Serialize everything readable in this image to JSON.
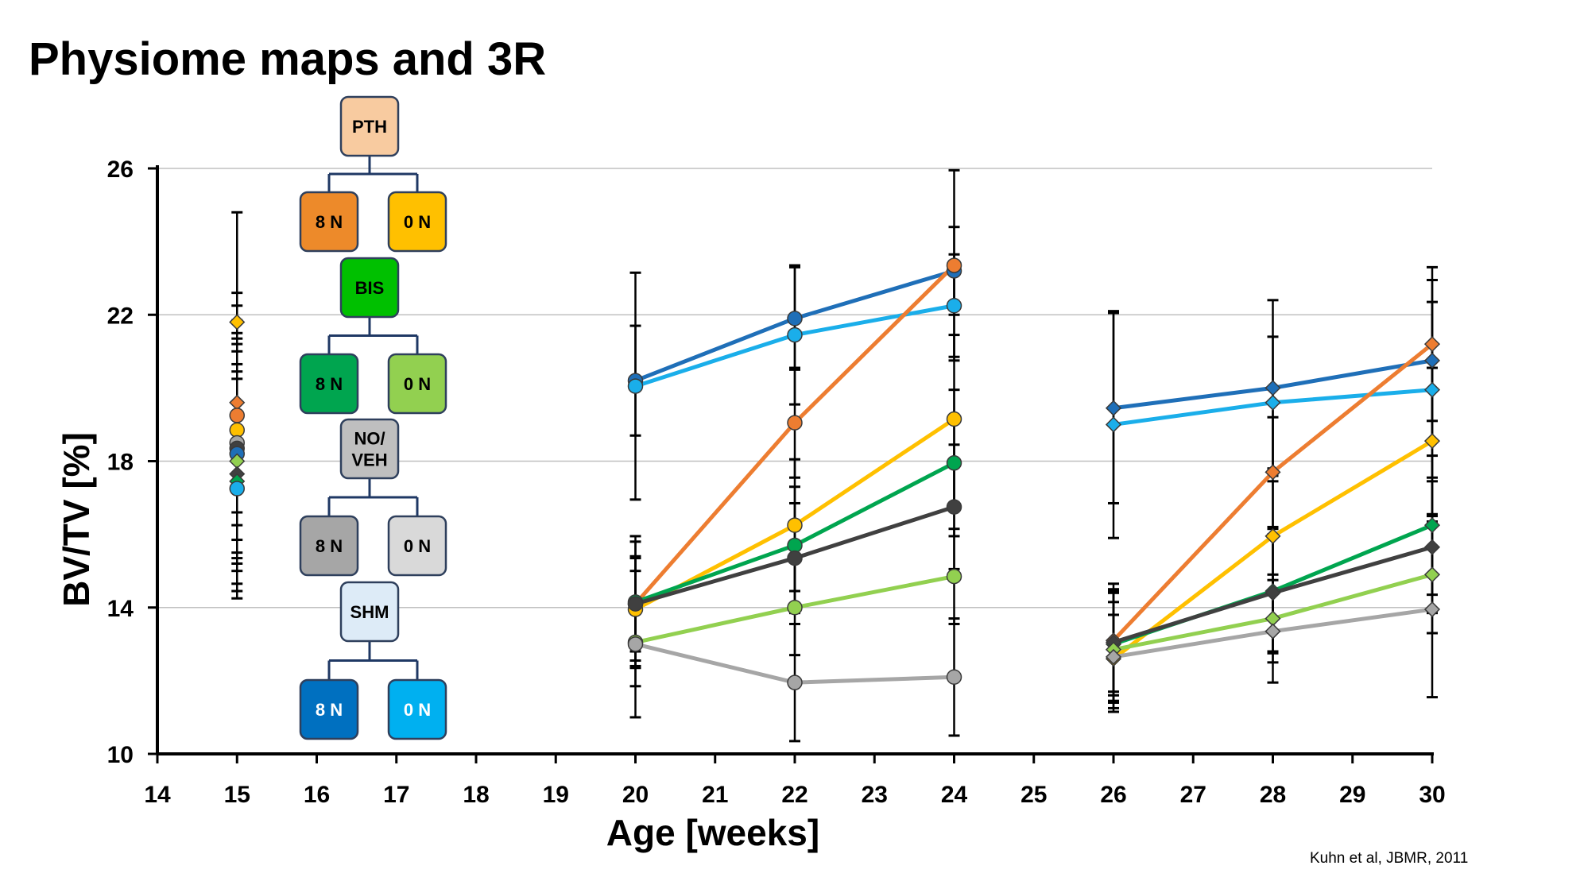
{
  "slide_title": "Physiome maps and 3R",
  "citation": "Kuhn et al, JBMR, 2011",
  "colors": {
    "axis": "#000000",
    "grid": "#c0c0c0",
    "error_bar": "#000000",
    "connector": "#1f3864"
  },
  "legend_tree": {
    "nodes": [
      {
        "id": "pth",
        "label": "PTH",
        "fill": "#f8cba0",
        "text_color": "#000000",
        "role": "group"
      },
      {
        "id": "pth-8n",
        "label": "8 N",
        "fill": "#ed8a2a",
        "text_color": "#000000",
        "role": "leaf"
      },
      {
        "id": "pth-0n",
        "label": "0 N",
        "fill": "#ffc000",
        "text_color": "#000000",
        "role": "leaf"
      },
      {
        "id": "bis",
        "label": "BIS",
        "fill": "#00c000",
        "text_color": "#000000",
        "role": "group"
      },
      {
        "id": "bis-8n",
        "label": "8 N",
        "fill": "#00a54f",
        "text_color": "#000000",
        "role": "leaf"
      },
      {
        "id": "bis-0n",
        "label": "0 N",
        "fill": "#92d050",
        "text_color": "#000000",
        "role": "leaf"
      },
      {
        "id": "noveh",
        "label": "NO/\nVEH",
        "fill": "#bfbfbf",
        "text_color": "#000000",
        "role": "group"
      },
      {
        "id": "noveh-8n",
        "label": "8 N",
        "fill": "#a6a6a6",
        "text_color": "#000000",
        "role": "leaf"
      },
      {
        "id": "noveh-0n",
        "label": "0 N",
        "fill": "#d9d9d9",
        "text_color": "#000000",
        "role": "leaf"
      },
      {
        "id": "shm",
        "label": "SHM",
        "fill": "#ddebf7",
        "text_color": "#000000",
        "role": "group"
      },
      {
        "id": "shm-8n",
        "label": "8 N",
        "fill": "#0070c0",
        "text_color": "#ffffff",
        "role": "leaf"
      },
      {
        "id": "shm-0n",
        "label": "0 N",
        "fill": "#00b0f0",
        "text_color": "#ffffff",
        "role": "leaf"
      }
    ]
  },
  "chart_data": {
    "type": "line",
    "title": "",
    "xlabel": "Age [weeks]",
    "ylabel": "BV/TV [%]",
    "xlim": [
      14,
      30
    ],
    "ylim": [
      10,
      26
    ],
    "x_ticks": [
      14,
      15,
      16,
      17,
      18,
      19,
      20,
      21,
      22,
      23,
      24,
      25,
      26,
      27,
      28,
      29,
      30
    ],
    "y_ticks": [
      10,
      14,
      18,
      22,
      26
    ],
    "grid": "horizontal",
    "series": [
      {
        "group": "SHM 8 N",
        "color": "#1f6fb8",
        "segments": [
          {
            "marker": "circle",
            "points": [
              [
                20,
                20.2
              ],
              [
                22,
                21.9
              ],
              [
                24,
                23.2
              ]
            ],
            "err": [
              1.5,
              1.4,
              1.2
            ]
          },
          {
            "marker": "diamond",
            "points": [
              [
                26,
                19.45
              ],
              [
                28,
                20.0
              ],
              [
                30,
                20.75
              ]
            ],
            "err": [
              2.6,
              2.4,
              2.2
            ]
          }
        ]
      },
      {
        "group": "SHM 0 N",
        "color": "#1aaeea",
        "segments": [
          {
            "marker": "circle",
            "points": [
              [
                20,
                20.05
              ],
              [
                22,
                21.45
              ],
              [
                24,
                22.25
              ]
            ],
            "err": [
              3.1,
              1.9,
              1.4
            ]
          },
          {
            "marker": "diamond",
            "points": [
              [
                26,
                19.0
              ],
              [
                28,
                19.6
              ],
              [
                30,
                19.95
              ]
            ],
            "err": [
              3.1,
              1.8,
              2.4
            ]
          }
        ]
      },
      {
        "group": "PTH 8 N",
        "color": "#ed7d31",
        "segments": [
          {
            "marker": "circle",
            "points": [
              [
                20,
                14.1
              ],
              [
                22,
                19.05
              ],
              [
                24,
                23.35
              ]
            ],
            "err": [
              1.3,
              1.5,
              2.6
            ]
          },
          {
            "marker": "diamond",
            "points": [
              [
                26,
                13.1
              ],
              [
                28,
                17.7
              ],
              [
                30,
                21.2
              ]
            ],
            "err": [
              1.4,
              1.5,
              2.1
            ]
          }
        ]
      },
      {
        "group": "PTH 0 N",
        "color": "#ffc000",
        "segments": [
          {
            "marker": "circle",
            "points": [
              [
                20,
                13.95
              ],
              [
                22,
                16.25
              ],
              [
                24,
                19.15
              ]
            ],
            "err": [
              1.4,
              1.8,
              2.3
            ]
          },
          {
            "marker": "diamond",
            "points": [
              [
                26,
                12.6
              ],
              [
                28,
                15.95
              ],
              [
                30,
                18.55
              ]
            ],
            "err": [
              1.2,
              1.5,
              2.0
            ]
          }
        ]
      },
      {
        "group": "BIS 8 N",
        "color": "#00a54f",
        "segments": [
          {
            "marker": "circle",
            "points": [
              [
                20,
                14.15
              ],
              [
                22,
                15.7
              ],
              [
                24,
                17.95
              ]
            ],
            "err": [
              1.8,
              1.6,
              2.0
            ]
          },
          {
            "marker": "diamond",
            "points": [
              [
                26,
                13.0
              ],
              [
                28,
                14.45
              ],
              [
                30,
                16.25
              ]
            ],
            "err": [
              1.4,
              1.7,
              1.9
            ]
          }
        ]
      },
      {
        "group": "NO/VEH 8 N",
        "color": "#404040",
        "segments": [
          {
            "marker": "circle",
            "points": [
              [
                20,
                14.1
              ],
              [
                22,
                15.35
              ],
              [
                24,
                16.75
              ]
            ],
            "err": [
              1.7,
              1.5,
              1.7
            ]
          },
          {
            "marker": "diamond",
            "points": [
              [
                26,
                13.05
              ],
              [
                28,
                14.4
              ],
              [
                30,
                15.65
              ]
            ],
            "err": [
              1.6,
              1.6,
              1.8
            ]
          }
        ]
      },
      {
        "group": "BIS 0 N",
        "color": "#92d050",
        "segments": [
          {
            "marker": "circle",
            "points": [
              [
                20,
                13.05
              ],
              [
                22,
                14.0
              ],
              [
                24,
                14.85
              ]
            ],
            "err": [
              1.2,
              1.3,
              1.3
            ]
          },
          {
            "marker": "diamond",
            "points": [
              [
                26,
                12.85
              ],
              [
                28,
                13.7
              ],
              [
                30,
                14.9
              ]
            ],
            "err": [
              1.6,
              1.2,
              1.6
            ]
          }
        ]
      },
      {
        "group": "NO/VEH 0 N",
        "color": "#a6a6a6",
        "segments": [
          {
            "marker": "circle",
            "points": [
              [
                20,
                13.0
              ],
              [
                22,
                11.95
              ],
              [
                24,
                12.1
              ]
            ],
            "err": [
              2.0,
              1.6,
              1.6
            ]
          },
          {
            "marker": "diamond",
            "points": [
              [
                26,
                12.65
              ],
              [
                28,
                13.35
              ],
              [
                30,
                13.95
              ]
            ],
            "err": [
              1.5,
              1.4,
              2.4
            ]
          }
        ]
      }
    ],
    "baseline_week15": {
      "x": 15,
      "err": 3.0,
      "points": [
        {
          "group": "PTH 0 N",
          "y": 21.8,
          "color": "#ffc000",
          "marker": "diamond"
        },
        {
          "group": "PTH 8 N",
          "y": 19.6,
          "color": "#ed7d31",
          "marker": "diamond"
        },
        {
          "group": "PTH 8 N",
          "y": 19.25,
          "color": "#ed7d31",
          "marker": "circle"
        },
        {
          "group": "PTH 0 N",
          "y": 18.85,
          "color": "#ffc000",
          "marker": "circle"
        },
        {
          "group": "NO/VEH 0 N",
          "y": 18.5,
          "color": "#a6a6a6",
          "marker": "circle"
        },
        {
          "group": "NO/VEH 8 N",
          "y": 18.35,
          "color": "#404040",
          "marker": "circle"
        },
        {
          "group": "SHM 8 N",
          "y": 18.2,
          "color": "#1f6fb8",
          "marker": "circle"
        },
        {
          "group": "BIS 0 N",
          "y": 18.0,
          "color": "#92d050",
          "marker": "diamond"
        },
        {
          "group": "NO/VEH 8 N",
          "y": 17.65,
          "color": "#404040",
          "marker": "diamond"
        },
        {
          "group": "BIS 8 N",
          "y": 17.45,
          "color": "#00a54f",
          "marker": "diamond"
        },
        {
          "group": "SHM 0 N",
          "y": 17.25,
          "color": "#1aaeea",
          "marker": "circle"
        }
      ]
    }
  }
}
